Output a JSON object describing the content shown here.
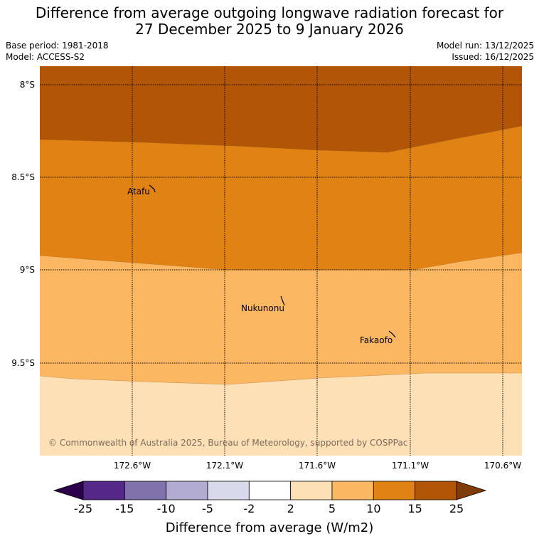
{
  "header": {
    "title_line1": "Difference from average outgoing longwave radiation forecast for",
    "title_line2": "27 December 2025 to 9 January 2026",
    "base_period": "Base period: 1981-2018",
    "model": "Model: ACCESS-S2",
    "model_run": "Model run: 13/12/2025",
    "issued": "Issued: 16/12/2025"
  },
  "map": {
    "lat_labels": [
      "8°S",
      "8.5°S",
      "9°S",
      "9.5°S"
    ],
    "lon_labels": [
      "172.6°W",
      "172.1°W",
      "171.6°W",
      "171.1°W",
      "170.6°W"
    ],
    "places": [
      "Atafu",
      "Nukunonu",
      "Fakaofo"
    ],
    "copyright": "© Commonwealth of Australia 2025, Bureau of Meteorology, supported by COSPPac",
    "band_colors": {
      "15_to_25": "#b05606",
      "10_to_15": "#e08214",
      "5_to_10": "#fbb761",
      "2_to_5": "#fee0b6"
    }
  },
  "colorbar": {
    "ticks": [
      "-25",
      "-15",
      "-10",
      "-5",
      "-2",
      "2",
      "5",
      "10",
      "15",
      "25"
    ],
    "colors": [
      "#542788",
      "#8073ac",
      "#b2abd2",
      "#d8daeb",
      "#ffffff",
      "#fee0b6",
      "#fbb761",
      "#e08214",
      "#b05606"
    ],
    "under_color": "#2d004b",
    "over_color": "#7f3b08",
    "label": "Difference from average (W/m2)"
  }
}
